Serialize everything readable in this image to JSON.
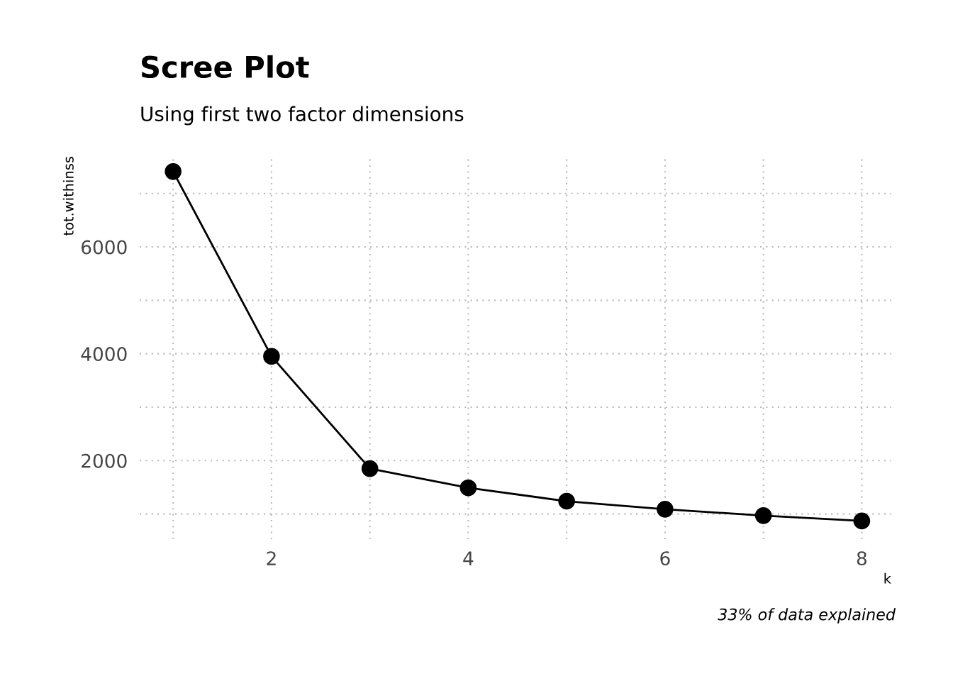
{
  "chart_data": {
    "type": "line",
    "title": "Scree Plot",
    "subtitle": "Using first two factor dimensions",
    "xlabel": "k",
    "ylabel": "tot.withinss",
    "x": [
      1,
      2,
      3,
      4,
      5,
      6,
      7,
      8
    ],
    "series": [
      {
        "color": "#000000",
        "values": [
          7410,
          3950,
          1850,
          1490,
          1240,
          1090,
          970,
          870
        ]
      }
    ],
    "xlim": [
      0.66,
      8.3
    ],
    "ylim": [
      530,
      7700
    ],
    "xticks": [
      {
        "value": 1,
        "label": null
      },
      2,
      {
        "value": 3,
        "label": null
      },
      4,
      {
        "value": 5,
        "label": null
      },
      6,
      {
        "value": 7,
        "label": null
      },
      8
    ],
    "yticks": [
      {
        "value": 1000,
        "label": null
      },
      2000,
      {
        "value": 3000,
        "label": null
      },
      4000,
      {
        "value": 5000,
        "label": null
      },
      6000,
      {
        "value": 7000,
        "label": null
      }
    ],
    "grid": true,
    "marker": "circle",
    "line_style": "solid",
    "annotations": [
      "33% of data explained"
    ]
  }
}
